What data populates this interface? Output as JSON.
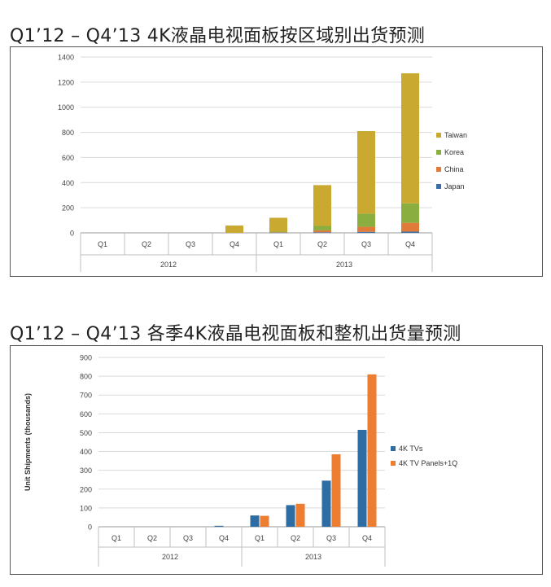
{
  "chart_data": [
    {
      "type": "bar",
      "stacked": true,
      "title": "Q1’12 – Q4’13 4K液晶电视面板按区域别出货预测",
      "ylabel": "",
      "ylim": [
        0,
        1400
      ],
      "yticks": [
        "0",
        "200",
        "400",
        "600",
        "800",
        "1000",
        "1200",
        "1400"
      ],
      "categories": [
        "Q1",
        "Q2",
        "Q3",
        "Q4",
        "Q1",
        "Q2",
        "Q3",
        "Q4"
      ],
      "groups": [
        {
          "label": "2012",
          "span": 4
        },
        {
          "label": "2013",
          "span": 4
        }
      ],
      "series": [
        {
          "name": "Japan",
          "color": "#3a6ea5",
          "values": [
            0,
            0,
            0,
            0,
            2,
            5,
            8,
            10
          ]
        },
        {
          "name": "China",
          "color": "#e07b39",
          "values": [
            0,
            0,
            0,
            0,
            3,
            15,
            40,
            70
          ]
        },
        {
          "name": "Korea",
          "color": "#8aae3f",
          "values": [
            0,
            0,
            0,
            0,
            5,
            35,
            105,
            155
          ]
        },
        {
          "name": "Taiwan",
          "color": "#c9a92f",
          "values": [
            0,
            0,
            0,
            58,
            110,
            325,
            657,
            1035
          ]
        }
      ],
      "legend_order": [
        "Taiwan",
        "Korea",
        "China",
        "Japan"
      ],
      "legend_position": "right",
      "grid": true
    },
    {
      "type": "bar",
      "stacked": false,
      "title": "Q1’12 – Q4’13 各季4K液晶电视面板和整机出货量预测",
      "ylabel": "Unit Shipments (thousands)",
      "ylim": [
        0,
        900
      ],
      "yticks": [
        "0",
        "100",
        "200",
        "300",
        "400",
        "500",
        "600",
        "700",
        "800",
        "900"
      ],
      "categories": [
        "Q1",
        "Q2",
        "Q3",
        "Q4",
        "Q1",
        "Q2",
        "Q3",
        "Q4"
      ],
      "groups": [
        {
          "label": "2012",
          "span": 4
        },
        {
          "label": "2013",
          "span": 4
        }
      ],
      "series": [
        {
          "name": "4K TVs",
          "color": "#2e6da4",
          "values": [
            0,
            0,
            0,
            5,
            60,
            115,
            245,
            515
          ]
        },
        {
          "name": "4K TV Panels+1Q",
          "color": "#ed7d31",
          "values": [
            0,
            0,
            0,
            0,
            58,
            122,
            385,
            810
          ]
        }
      ],
      "legend_order": [
        "4K TVs",
        "4K TV Panels+1Q"
      ],
      "legend_position": "right",
      "grid": true
    }
  ]
}
